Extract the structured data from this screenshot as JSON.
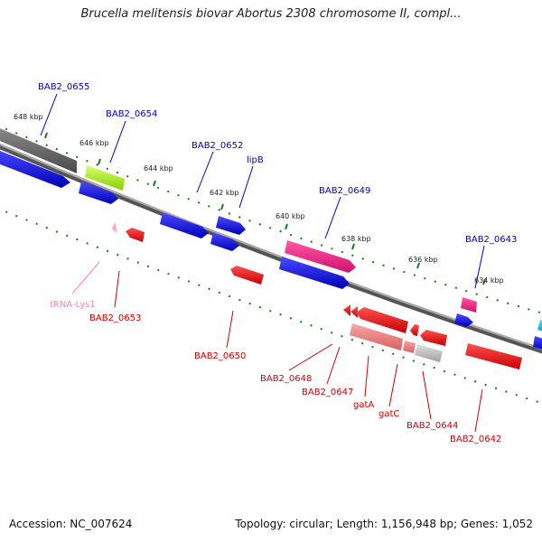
{
  "title": "Brucella melitensis biovar Abortus 2308 chromosome II, compl...",
  "footer": {
    "accession": "Accession: NC_007624",
    "topology": "Topology: circular; Length: 1,156,948 bp; Genes: 1,052"
  },
  "colors": {
    "backbone": "#777777",
    "tick": "#1a7a1a",
    "forward_label": "#0000c8",
    "reverse_label": "#d00000",
    "trna_label": "#ff80b0"
  },
  "ruler": {
    "labels": [
      {
        "text": "648 kbp"
      },
      {
        "text": "646 kbp"
      },
      {
        "text": "644 kbp"
      },
      {
        "text": "642 kbp"
      },
      {
        "text": "640 kbp"
      },
      {
        "text": "638 kbp"
      },
      {
        "text": "636 kbp"
      },
      {
        "text": "634 kbp"
      }
    ]
  },
  "gene_labels": [
    {
      "text": "BAB2_0655",
      "strand": "forward"
    },
    {
      "text": "BAB2_0654",
      "strand": "forward"
    },
    {
      "text": "BAB2_0652",
      "strand": "forward"
    },
    {
      "text": "lipB",
      "strand": "forward"
    },
    {
      "text": "BAB2_0649",
      "strand": "forward"
    },
    {
      "text": "BAB2_0643",
      "strand": "forward"
    },
    {
      "text": "tRNA-Lys1",
      "strand": "trna"
    },
    {
      "text": "BAB2_0653",
      "strand": "reverse"
    },
    {
      "text": "BAB2_0650",
      "strand": "reverse"
    },
    {
      "text": "BAB2_0648",
      "strand": "reverse"
    },
    {
      "text": "BAB2_0647",
      "strand": "reverse"
    },
    {
      "text": "gatA",
      "strand": "reverse"
    },
    {
      "text": "gatC",
      "strand": "reverse"
    },
    {
      "text": "BAB2_0644",
      "strand": "reverse"
    },
    {
      "text": "BAB2_0642",
      "strand": "reverse"
    }
  ]
}
